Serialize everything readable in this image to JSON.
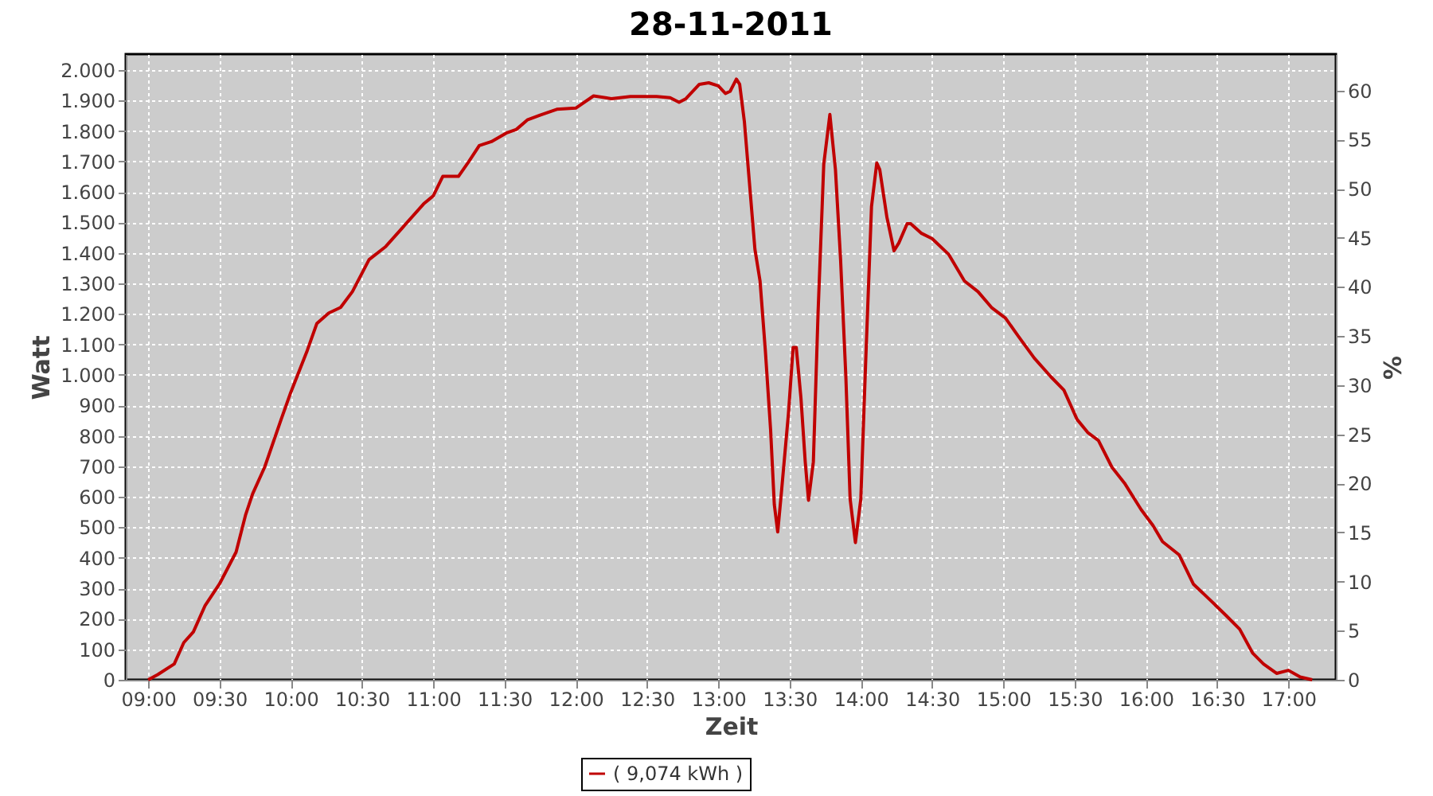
{
  "chart_data": {
    "type": "line",
    "title": "28-11-2011",
    "xlabel": "Zeit",
    "ylabel": "Watt",
    "y2label": "%",
    "x": [
      9.0,
      9.067,
      9.183,
      9.25,
      9.317,
      9.4,
      9.5,
      9.617,
      9.683,
      9.733,
      9.817,
      9.933,
      10.0,
      10.117,
      10.183,
      10.267,
      10.35,
      10.433,
      10.55,
      10.667,
      10.783,
      10.933,
      11.0,
      11.067,
      11.177,
      11.25,
      11.323,
      11.408,
      11.512,
      11.583,
      11.66,
      11.75,
      11.867,
      12.0,
      12.125,
      12.25,
      12.383,
      12.567,
      12.662,
      12.725,
      12.773,
      12.867,
      12.933,
      13.0,
      13.05,
      13.083,
      13.127,
      13.15,
      13.183,
      13.217,
      13.257,
      13.293,
      13.33,
      13.367,
      13.393,
      13.417,
      13.442,
      13.492,
      13.525,
      13.547,
      13.58,
      13.61,
      13.633,
      13.667,
      13.7,
      13.74,
      13.783,
      13.822,
      13.858,
      13.895,
      13.925,
      13.962,
      14.0,
      14.033,
      14.075,
      14.112,
      14.133,
      14.183,
      14.233,
      14.267,
      14.325,
      14.35,
      14.423,
      14.5,
      14.617,
      14.727,
      14.822,
      14.917,
      15.015,
      15.108,
      15.217,
      15.333,
      15.425,
      15.517,
      15.592,
      15.667,
      15.762,
      15.85,
      15.967,
      16.05,
      16.117,
      16.233,
      16.333,
      16.45,
      16.567,
      16.658,
      16.75,
      16.825,
      16.917,
      17.0,
      17.083,
      17.167
    ],
    "series": [
      {
        "name": "( 9,074 kWh )",
        "color": "#c00000",
        "values": [
          0,
          17,
          52,
          122,
          157,
          244,
          314,
          419,
          540,
          610,
          697,
          854,
          942,
          1081,
          1168,
          1203,
          1221,
          1273,
          1378,
          1421,
          1482,
          1561,
          1587,
          1651,
          1651,
          1700,
          1752,
          1765,
          1793,
          1805,
          1836,
          1852,
          1871,
          1875,
          1915,
          1906,
          1913,
          1913,
          1909,
          1894,
          1906,
          1953,
          1958,
          1948,
          1923,
          1930,
          1970,
          1953,
          1831,
          1639,
          1412,
          1308,
          1081,
          820,
          575,
          485,
          610,
          872,
          1090,
          1090,
          924,
          715,
          589,
          715,
          1203,
          1691,
          1854,
          1673,
          1378,
          994,
          593,
          450,
          593,
          1029,
          1552,
          1695,
          1673,
          1517,
          1407,
          1433,
          1496,
          1496,
          1465,
          1447,
          1395,
          1308,
          1273,
          1221,
          1186,
          1125,
          1055,
          994,
          950,
          854,
          811,
          785,
          697,
          645,
          558,
          506,
          453,
          410,
          314,
          262,
          209,
          166,
          87,
          52,
          21,
          31,
          9,
          0
        ]
      }
    ],
    "xlim": [
      8.843,
      17.333
    ],
    "xticks": [
      {
        "value": 9.0,
        "label": "09:00"
      },
      {
        "value": 9.5,
        "label": "09:30"
      },
      {
        "value": 10.0,
        "label": "10:00"
      },
      {
        "value": 10.5,
        "label": "10:30"
      },
      {
        "value": 11.0,
        "label": "11:00"
      },
      {
        "value": 11.5,
        "label": "11:30"
      },
      {
        "value": 12.0,
        "label": "12:00"
      },
      {
        "value": 12.5,
        "label": "12:30"
      },
      {
        "value": 13.0,
        "label": "13:00"
      },
      {
        "value": 13.5,
        "label": "13:30"
      },
      {
        "value": 14.0,
        "label": "14:00"
      },
      {
        "value": 14.5,
        "label": "14:30"
      },
      {
        "value": 15.0,
        "label": "15:00"
      },
      {
        "value": 15.5,
        "label": "15:30"
      },
      {
        "value": 16.0,
        "label": "16:00"
      },
      {
        "value": 16.5,
        "label": "16:30"
      },
      {
        "value": 17.0,
        "label": "17:00"
      }
    ],
    "ylim": [
      0,
      2052
    ],
    "yticks": [
      0,
      100,
      200,
      300,
      400,
      500,
      600,
      700,
      800,
      900,
      {
        "value": 1000,
        "label": "1.000"
      },
      {
        "value": 1100,
        "label": "1.100"
      },
      {
        "value": 1200,
        "label": "1.200"
      },
      {
        "value": 1300,
        "label": "1.300"
      },
      {
        "value": 1400,
        "label": "1.400"
      },
      {
        "value": 1500,
        "label": "1.500"
      },
      {
        "value": 1600,
        "label": "1.600"
      },
      {
        "value": 1700,
        "label": "1.700"
      },
      {
        "value": 1800,
        "label": "1.800"
      },
      {
        "value": 1900,
        "label": "1.900"
      },
      {
        "value": 2000,
        "label": "2.000"
      }
    ],
    "y2lim": [
      0,
      63.7
    ],
    "y2ticks": [
      0,
      5,
      10,
      15,
      20,
      25,
      30,
      35,
      40,
      45,
      50,
      55,
      60
    ],
    "grid": true,
    "legend": "bottom",
    "marker": "none",
    "line_style": "solid"
  }
}
